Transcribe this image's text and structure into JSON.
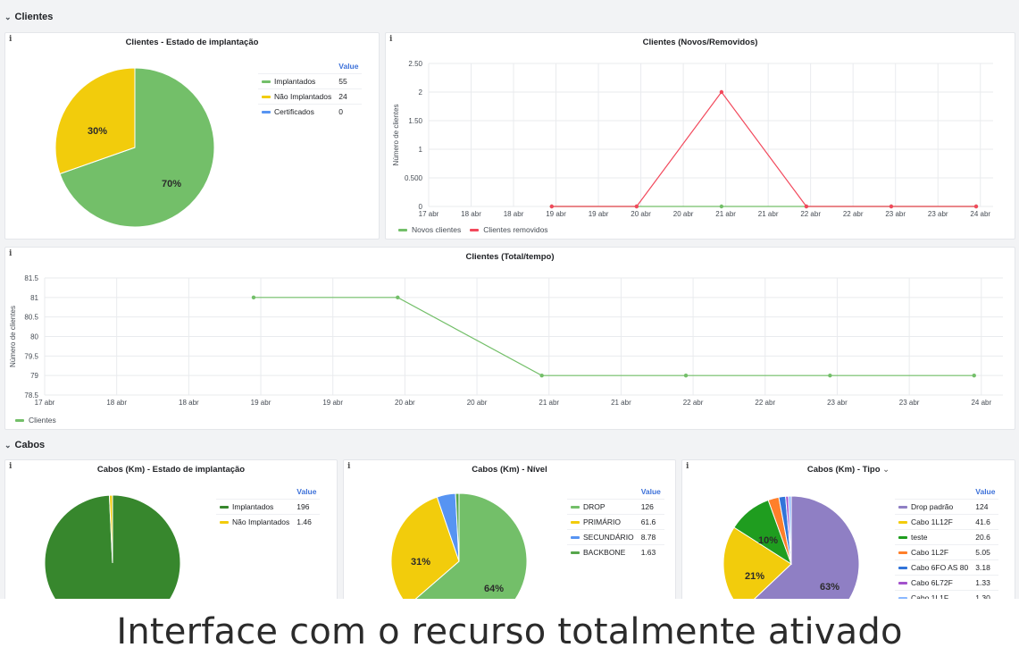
{
  "rows": {
    "clientes": "Clientes",
    "cabos": "Cabos"
  },
  "panels": {
    "pie_clientes": {
      "title": "Clientes - Estado de implantação",
      "legend_header": "Value",
      "items": [
        {
          "label": "Implantados",
          "value": "55",
          "color": "#73bf69"
        },
        {
          "label": "Não Implantados",
          "value": "24",
          "color": "#f2cc0c"
        },
        {
          "label": "Certificados",
          "value": "0",
          "color": "#5794f2"
        }
      ],
      "slice_labels": [
        "70%",
        "30%"
      ]
    },
    "line_novos": {
      "title": "Clientes (Novos/Removidos)",
      "ylabel": "Número de clientes",
      "legend": [
        {
          "label": "Novos clientes",
          "color": "#73bf69"
        },
        {
          "label": "Clientes removidos",
          "color": "#f2495c"
        }
      ]
    },
    "line_total": {
      "title": "Clientes (Total/tempo)",
      "ylabel": "Número de clientes",
      "legend": [
        {
          "label": "Clientes",
          "color": "#73bf69"
        }
      ]
    },
    "pie_cabos_estado": {
      "title": "Cabos (Km) - Estado de implantação",
      "legend_header": "Value",
      "items": [
        {
          "label": "Implantados",
          "value": "196",
          "color": "#37872d"
        },
        {
          "label": "Não Implantados",
          "value": "1.46",
          "color": "#f2cc0c"
        }
      ]
    },
    "pie_cabos_nivel": {
      "title": "Cabos (Km) - Nível",
      "legend_header": "Value",
      "items": [
        {
          "label": "DROP",
          "value": "126",
          "color": "#73bf69"
        },
        {
          "label": "PRIMÁRIO",
          "value": "61.6",
          "color": "#f2cc0c"
        },
        {
          "label": "SECUNDÁRIO",
          "value": "8.78",
          "color": "#5794f2"
        },
        {
          "label": "BACKBONE",
          "value": "1.63",
          "color": "#56a64b"
        }
      ],
      "slice_labels": [
        "64%",
        "31%"
      ]
    },
    "pie_cabos_tipo": {
      "title": "Cabos (Km) - Tipo",
      "legend_header": "Value",
      "items": [
        {
          "label": "Drop padrão",
          "value": "124",
          "color": "#8f7fc4"
        },
        {
          "label": "Cabo 1L12F",
          "value": "41.6",
          "color": "#f2cc0c"
        },
        {
          "label": "teste",
          "value": "20.6",
          "color": "#1f9d1f"
        },
        {
          "label": "Cabo 1L2F",
          "value": "5.05",
          "color": "#ff7f2a"
        },
        {
          "label": "Cabo 6FO AS 80",
          "value": "3.18",
          "color": "#3274d9"
        },
        {
          "label": "Cabo 6L72F",
          "value": "1.33",
          "color": "#a352cc"
        },
        {
          "label": "Cabo 1L1F",
          "value": "1.30",
          "color": "#8ab8ff"
        }
      ],
      "slice_labels": [
        "63%",
        "21%",
        "10%"
      ]
    }
  },
  "chart_data": [
    {
      "type": "pie",
      "title": "Clientes - Estado de implantação",
      "categories": [
        "Implantados",
        "Não Implantados",
        "Certificados"
      ],
      "values": [
        55,
        24,
        0
      ]
    },
    {
      "type": "line",
      "title": "Clientes (Novos/Removidos)",
      "ylabel": "Número de clientes",
      "ylim": [
        0,
        2.5
      ],
      "yticks": [
        "0",
        "0.500",
        "1",
        "1.50",
        "2",
        "2.50"
      ],
      "xticks": [
        "17 abr",
        "18 abr",
        "18 abr",
        "19 abr",
        "19 abr",
        "20 abr",
        "20 abr",
        "21 abr",
        "21 abr",
        "22 abr",
        "22 abr",
        "23 abr",
        "23 abr",
        "24 abr"
      ],
      "x": [
        "19 abr",
        "20 abr",
        "21 abr",
        "22 abr",
        "23 abr",
        "24 abr"
      ],
      "series": [
        {
          "name": "Novos clientes",
          "values": [
            0,
            0,
            0,
            0,
            0,
            0
          ]
        },
        {
          "name": "Clientes removidos",
          "values": [
            0,
            0,
            2,
            0,
            0,
            0
          ]
        }
      ]
    },
    {
      "type": "line",
      "title": "Clientes (Total/tempo)",
      "ylabel": "Número de clientes",
      "ylim": [
        78.5,
        81.5
      ],
      "yticks": [
        "78.5",
        "79",
        "79.5",
        "80",
        "80.5",
        "81",
        "81.5"
      ],
      "xticks": [
        "17 abr",
        "18 abr",
        "18 abr",
        "19 abr",
        "19 abr",
        "20 abr",
        "20 abr",
        "21 abr",
        "21 abr",
        "22 abr",
        "22 abr",
        "23 abr",
        "23 abr",
        "24 abr"
      ],
      "x": [
        "19 abr",
        "20 abr",
        "21 abr",
        "22 abr",
        "23 abr",
        "24 abr"
      ],
      "series": [
        {
          "name": "Clientes",
          "values": [
            81,
            81,
            79,
            79,
            79,
            79
          ]
        }
      ]
    },
    {
      "type": "pie",
      "title": "Cabos (Km) - Estado de implantação",
      "categories": [
        "Implantados",
        "Não Implantados"
      ],
      "values": [
        196,
        1.46
      ]
    },
    {
      "type": "pie",
      "title": "Cabos (Km) - Nível",
      "categories": [
        "DROP",
        "PRIMÁRIO",
        "SECUNDÁRIO",
        "BACKBONE"
      ],
      "values": [
        126,
        61.6,
        8.78,
        1.63
      ]
    },
    {
      "type": "pie",
      "title": "Cabos (Km) - Tipo",
      "categories": [
        "Drop padrão",
        "Cabo 1L12F",
        "teste",
        "Cabo 1L2F",
        "Cabo 6FO AS 80",
        "Cabo 6L72F",
        "Cabo 1L1F"
      ],
      "values": [
        124,
        41.6,
        20.6,
        5.05,
        3.18,
        1.33,
        1.3
      ]
    }
  ],
  "caption": "Interface com o recurso totalmente ativado"
}
